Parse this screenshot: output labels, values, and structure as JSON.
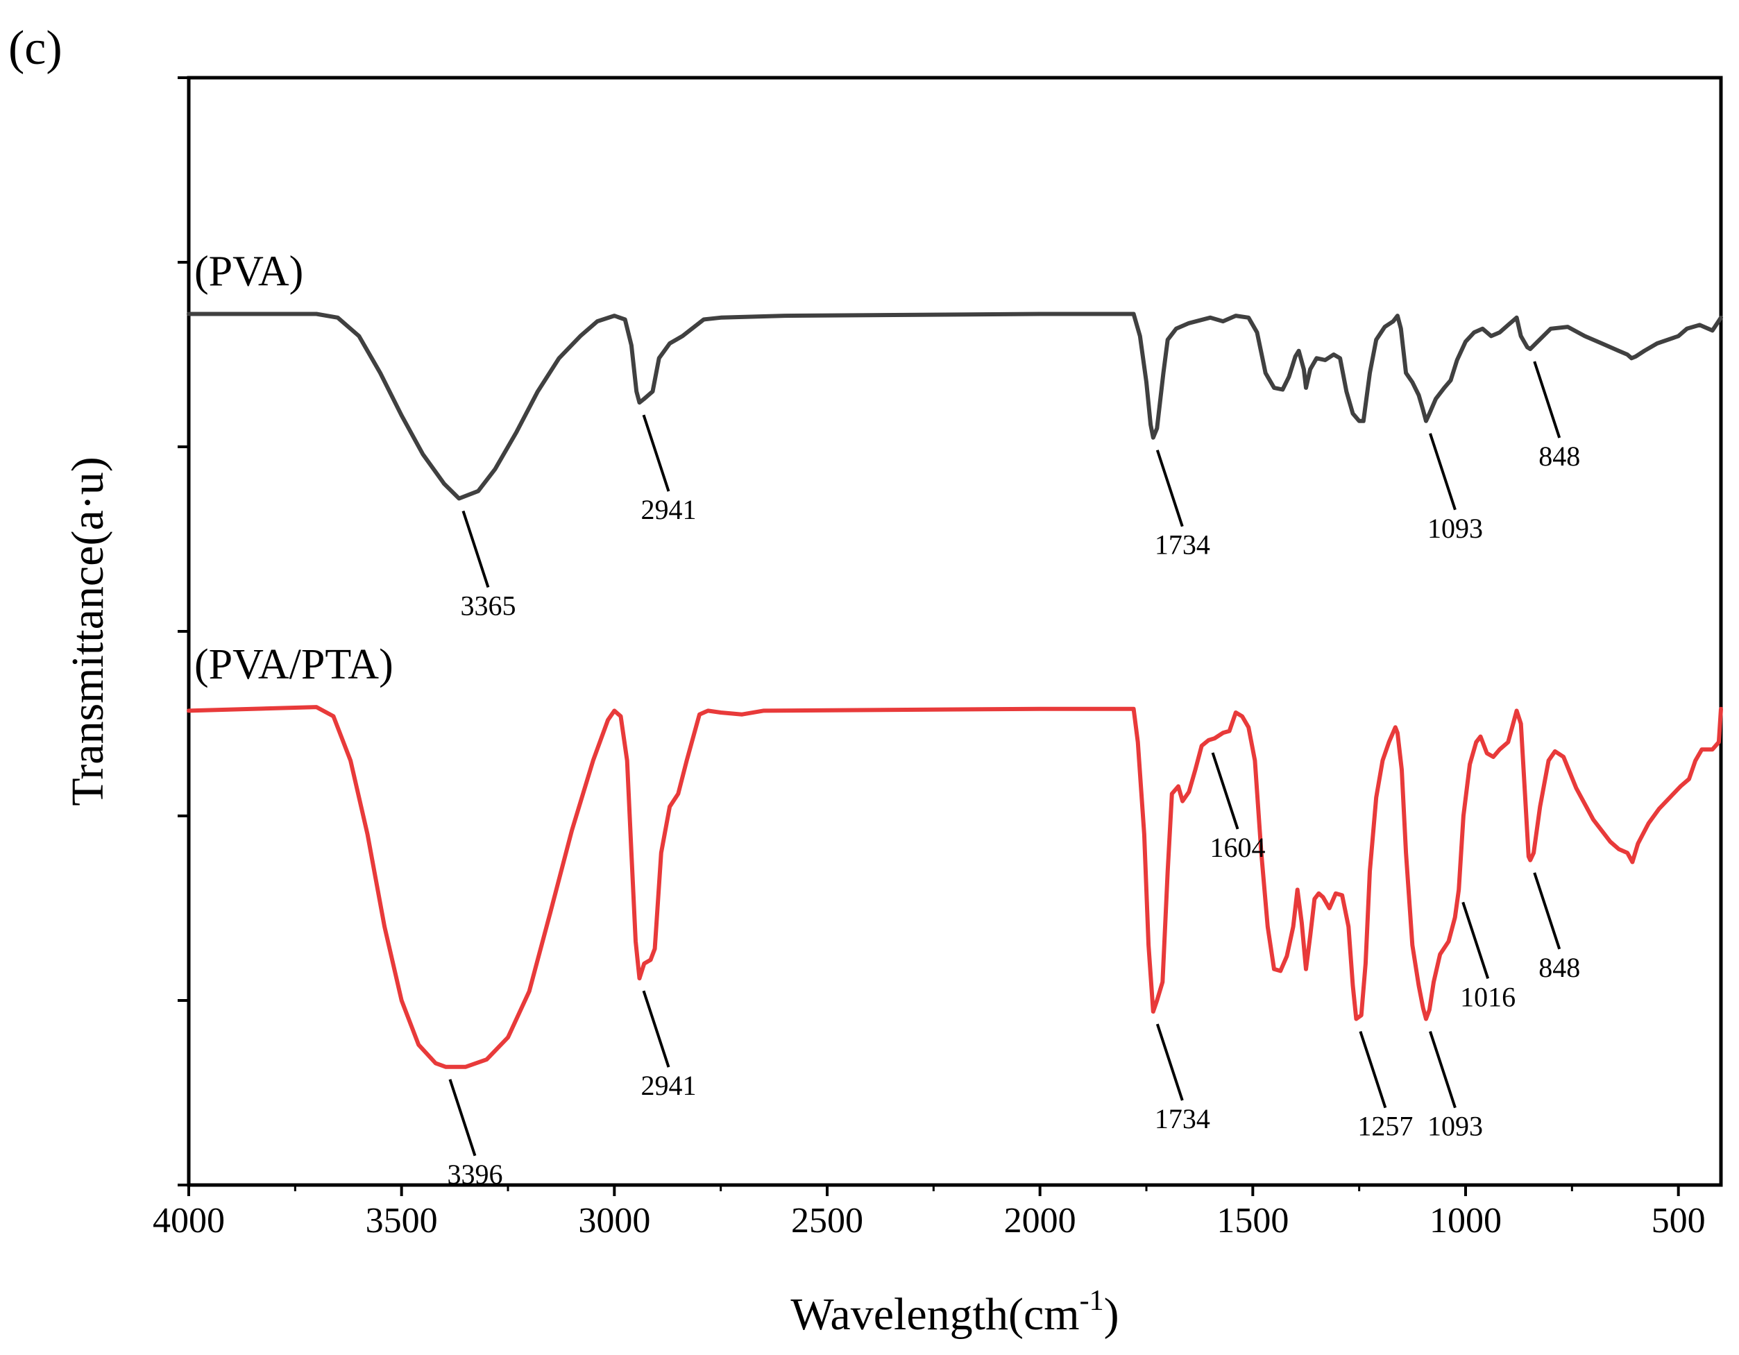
{
  "panel_label": "(c)",
  "chart_data": {
    "type": "line",
    "title": "",
    "xlabel": "Wavelength(cm",
    "xlabel_sup": "-1",
    "xlabel_close": ")",
    "ylabel": "Transmittance(a·u)",
    "xlim": [
      4000,
      400
    ],
    "ylim": [
      0,
      6
    ],
    "x_ticks": [
      4000,
      3500,
      3000,
      2500,
      2000,
      1500,
      1000,
      500
    ],
    "x_tick_labels": [
      "4000",
      "3500",
      "3000",
      "2500",
      "2000",
      "1500",
      "1000",
      "500"
    ],
    "grid": false,
    "series": [
      {
        "name": "(PVA)",
        "color": "#404040",
        "points": [
          [
            4000,
            4.72
          ],
          [
            3700,
            4.72
          ],
          [
            3650,
            4.7
          ],
          [
            3600,
            4.6
          ],
          [
            3550,
            4.4
          ],
          [
            3500,
            4.17
          ],
          [
            3450,
            3.96
          ],
          [
            3400,
            3.8
          ],
          [
            3365,
            3.72
          ],
          [
            3320,
            3.76
          ],
          [
            3280,
            3.88
          ],
          [
            3230,
            4.08
          ],
          [
            3180,
            4.3
          ],
          [
            3130,
            4.48
          ],
          [
            3080,
            4.6
          ],
          [
            3040,
            4.68
          ],
          [
            3000,
            4.71
          ],
          [
            2975,
            4.69
          ],
          [
            2960,
            4.55
          ],
          [
            2948,
            4.3
          ],
          [
            2941,
            4.24
          ],
          [
            2930,
            4.26
          ],
          [
            2920,
            4.28
          ],
          [
            2910,
            4.3
          ],
          [
            2895,
            4.48
          ],
          [
            2870,
            4.56
          ],
          [
            2840,
            4.6
          ],
          [
            2790,
            4.69
          ],
          [
            2750,
            4.7
          ],
          [
            2600,
            4.71
          ],
          [
            2000,
            4.72
          ],
          [
            1780,
            4.72
          ],
          [
            1765,
            4.6
          ],
          [
            1750,
            4.35
          ],
          [
            1740,
            4.12
          ],
          [
            1734,
            4.05
          ],
          [
            1725,
            4.1
          ],
          [
            1710,
            4.4
          ],
          [
            1700,
            4.58
          ],
          [
            1680,
            4.64
          ],
          [
            1650,
            4.67
          ],
          [
            1600,
            4.7
          ],
          [
            1570,
            4.68
          ],
          [
            1540,
            4.71
          ],
          [
            1510,
            4.7
          ],
          [
            1490,
            4.62
          ],
          [
            1470,
            4.4
          ],
          [
            1450,
            4.32
          ],
          [
            1430,
            4.31
          ],
          [
            1415,
            4.38
          ],
          [
            1400,
            4.49
          ],
          [
            1392,
            4.52
          ],
          [
            1380,
            4.42
          ],
          [
            1375,
            4.32
          ],
          [
            1365,
            4.42
          ],
          [
            1350,
            4.48
          ],
          [
            1330,
            4.47
          ],
          [
            1310,
            4.5
          ],
          [
            1295,
            4.48
          ],
          [
            1280,
            4.3
          ],
          [
            1265,
            4.18
          ],
          [
            1250,
            4.14
          ],
          [
            1240,
            4.14
          ],
          [
            1225,
            4.4
          ],
          [
            1210,
            4.58
          ],
          [
            1190,
            4.65
          ],
          [
            1170,
            4.68
          ],
          [
            1160,
            4.71
          ],
          [
            1152,
            4.64
          ],
          [
            1140,
            4.4
          ],
          [
            1125,
            4.35
          ],
          [
            1110,
            4.28
          ],
          [
            1100,
            4.2
          ],
          [
            1093,
            4.14
          ],
          [
            1085,
            4.18
          ],
          [
            1070,
            4.26
          ],
          [
            1050,
            4.32
          ],
          [
            1035,
            4.36
          ],
          [
            1020,
            4.47
          ],
          [
            1000,
            4.57
          ],
          [
            980,
            4.62
          ],
          [
            960,
            4.64
          ],
          [
            940,
            4.6
          ],
          [
            920,
            4.62
          ],
          [
            900,
            4.66
          ],
          [
            880,
            4.7
          ],
          [
            870,
            4.6
          ],
          [
            855,
            4.54
          ],
          [
            848,
            4.53
          ],
          [
            835,
            4.56
          ],
          [
            800,
            4.64
          ],
          [
            760,
            4.65
          ],
          [
            720,
            4.6
          ],
          [
            680,
            4.56
          ],
          [
            640,
            4.52
          ],
          [
            620,
            4.5
          ],
          [
            610,
            4.48
          ],
          [
            600,
            4.49
          ],
          [
            580,
            4.52
          ],
          [
            550,
            4.56
          ],
          [
            500,
            4.6
          ],
          [
            480,
            4.64
          ],
          [
            450,
            4.66
          ],
          [
            420,
            4.63
          ],
          [
            400,
            4.7
          ]
        ]
      },
      {
        "name": "(PVA/PTA)",
        "color": "#e83a3a",
        "points": [
          [
            4000,
            2.57
          ],
          [
            3700,
            2.59
          ],
          [
            3660,
            2.54
          ],
          [
            3620,
            2.3
          ],
          [
            3580,
            1.9
          ],
          [
            3540,
            1.4
          ],
          [
            3500,
            1.0
          ],
          [
            3460,
            0.76
          ],
          [
            3420,
            0.66
          ],
          [
            3396,
            0.64
          ],
          [
            3350,
            0.64
          ],
          [
            3300,
            0.68
          ],
          [
            3250,
            0.8
          ],
          [
            3200,
            1.05
          ],
          [
            3150,
            1.48
          ],
          [
            3100,
            1.92
          ],
          [
            3050,
            2.3
          ],
          [
            3015,
            2.52
          ],
          [
            3000,
            2.57
          ],
          [
            2985,
            2.54
          ],
          [
            2970,
            2.3
          ],
          [
            2960,
            1.8
          ],
          [
            2950,
            1.32
          ],
          [
            2941,
            1.12
          ],
          [
            2930,
            1.2
          ],
          [
            2915,
            1.22
          ],
          [
            2905,
            1.28
          ],
          [
            2890,
            1.8
          ],
          [
            2870,
            2.05
          ],
          [
            2850,
            2.12
          ],
          [
            2830,
            2.3
          ],
          [
            2800,
            2.55
          ],
          [
            2780,
            2.57
          ],
          [
            2750,
            2.56
          ],
          [
            2700,
            2.55
          ],
          [
            2650,
            2.57
          ],
          [
            2000,
            2.58
          ],
          [
            1780,
            2.58
          ],
          [
            1770,
            2.4
          ],
          [
            1755,
            1.9
          ],
          [
            1745,
            1.3
          ],
          [
            1734,
            0.94
          ],
          [
            1725,
            1.0
          ],
          [
            1712,
            1.1
          ],
          [
            1700,
            1.7
          ],
          [
            1690,
            2.12
          ],
          [
            1675,
            2.16
          ],
          [
            1665,
            2.08
          ],
          [
            1650,
            2.13
          ],
          [
            1635,
            2.25
          ],
          [
            1620,
            2.38
          ],
          [
            1604,
            2.41
          ],
          [
            1590,
            2.42
          ],
          [
            1570,
            2.45
          ],
          [
            1555,
            2.46
          ],
          [
            1540,
            2.56
          ],
          [
            1525,
            2.54
          ],
          [
            1510,
            2.48
          ],
          [
            1495,
            2.3
          ],
          [
            1480,
            1.8
          ],
          [
            1465,
            1.4
          ],
          [
            1450,
            1.17
          ],
          [
            1435,
            1.16
          ],
          [
            1420,
            1.24
          ],
          [
            1405,
            1.4
          ],
          [
            1395,
            1.6
          ],
          [
            1385,
            1.42
          ],
          [
            1375,
            1.17
          ],
          [
            1365,
            1.35
          ],
          [
            1355,
            1.55
          ],
          [
            1345,
            1.58
          ],
          [
            1335,
            1.56
          ],
          [
            1320,
            1.5
          ],
          [
            1305,
            1.58
          ],
          [
            1290,
            1.57
          ],
          [
            1275,
            1.4
          ],
          [
            1265,
            1.08
          ],
          [
            1257,
            0.9
          ],
          [
            1245,
            0.92
          ],
          [
            1235,
            1.2
          ],
          [
            1225,
            1.7
          ],
          [
            1210,
            2.1
          ],
          [
            1195,
            2.3
          ],
          [
            1180,
            2.4
          ],
          [
            1165,
            2.48
          ],
          [
            1160,
            2.45
          ],
          [
            1150,
            2.25
          ],
          [
            1140,
            1.8
          ],
          [
            1125,
            1.3
          ],
          [
            1110,
            1.08
          ],
          [
            1100,
            0.96
          ],
          [
            1093,
            0.9
          ],
          [
            1085,
            0.95
          ],
          [
            1075,
            1.1
          ],
          [
            1060,
            1.25
          ],
          [
            1040,
            1.32
          ],
          [
            1025,
            1.45
          ],
          [
            1016,
            1.6
          ],
          [
            1005,
            2.0
          ],
          [
            990,
            2.28
          ],
          [
            975,
            2.4
          ],
          [
            965,
            2.43
          ],
          [
            950,
            2.34
          ],
          [
            935,
            2.32
          ],
          [
            920,
            2.36
          ],
          [
            900,
            2.4
          ],
          [
            880,
            2.57
          ],
          [
            870,
            2.5
          ],
          [
            860,
            2.1
          ],
          [
            852,
            1.78
          ],
          [
            848,
            1.76
          ],
          [
            840,
            1.8
          ],
          [
            825,
            2.05
          ],
          [
            805,
            2.3
          ],
          [
            790,
            2.35
          ],
          [
            770,
            2.32
          ],
          [
            740,
            2.15
          ],
          [
            700,
            1.98
          ],
          [
            660,
            1.86
          ],
          [
            640,
            1.82
          ],
          [
            620,
            1.8
          ],
          [
            608,
            1.75
          ],
          [
            595,
            1.85
          ],
          [
            570,
            1.96
          ],
          [
            545,
            2.04
          ],
          [
            520,
            2.1
          ],
          [
            495,
            2.16
          ],
          [
            475,
            2.2
          ],
          [
            460,
            2.3
          ],
          [
            445,
            2.36
          ],
          [
            420,
            2.36
          ],
          [
            405,
            2.4
          ],
          [
            400,
            2.58
          ]
        ]
      }
    ],
    "series_labels": [
      {
        "text": "(PVA)",
        "x": 4000,
        "y": 4.95
      },
      {
        "text": "(PVA/PTA)",
        "x": 4000,
        "y": 2.82
      }
    ],
    "annotations": [
      {
        "label": "3365",
        "x": 3365,
        "y": 3.72,
        "series": "(PVA)"
      },
      {
        "label": "2941",
        "x": 2941,
        "y": 4.24,
        "series": "(PVA)"
      },
      {
        "label": "1734",
        "x": 1734,
        "y": 4.05,
        "series": "(PVA)"
      },
      {
        "label": "1093",
        "x": 1093,
        "y": 4.14,
        "series": "(PVA)"
      },
      {
        "label": "848",
        "x": 848,
        "y": 4.53,
        "series": "(PVA)"
      },
      {
        "label": "3396",
        "x": 3396,
        "y": 0.64,
        "series": "(PVA/PTA)"
      },
      {
        "label": "2941",
        "x": 2941,
        "y": 1.12,
        "series": "(PVA/PTA)"
      },
      {
        "label": "1604",
        "x": 1604,
        "y": 2.41,
        "series": "(PVA/PTA)"
      },
      {
        "label": "1734",
        "x": 1734,
        "y": 0.94,
        "series": "(PVA/PTA)"
      },
      {
        "label": "1257",
        "x": 1257,
        "y": 0.9,
        "series": "(PVA/PTA)"
      },
      {
        "label": "1093",
        "x": 1093,
        "y": 0.9,
        "series": "(PVA/PTA)"
      },
      {
        "label": "1016",
        "x": 1016,
        "y": 1.6,
        "series": "(PVA/PTA)"
      },
      {
        "label": "848",
        "x": 848,
        "y": 1.76,
        "series": "(PVA/PTA)"
      }
    ]
  }
}
